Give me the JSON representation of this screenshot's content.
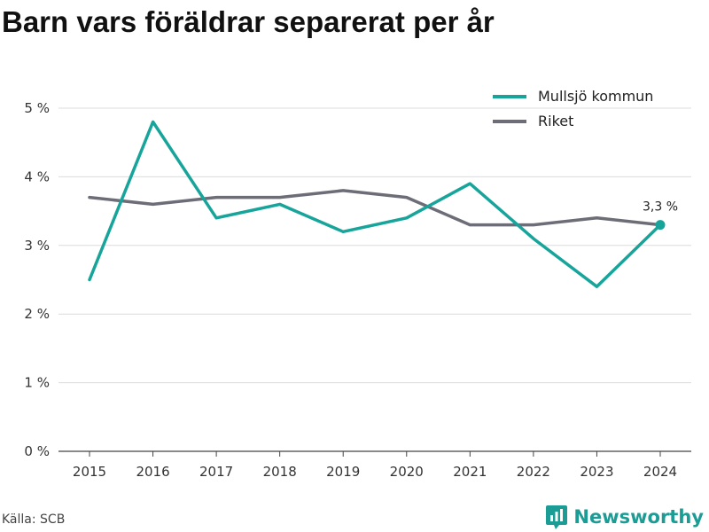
{
  "title": "Barn vars föräldrar separerat per år",
  "source": "Källa: SCB",
  "brand": {
    "name": "Newsworthy",
    "icon": "newsworthy-logo-icon",
    "color": "#1b9c94"
  },
  "chart_data": {
    "type": "line",
    "x": [
      "2015",
      "2016",
      "2017",
      "2018",
      "2019",
      "2020",
      "2021",
      "2022",
      "2023",
      "2024"
    ],
    "ylim": [
      0,
      5
    ],
    "yticks": [
      {
        "value": 0,
        "label": "0 %"
      },
      {
        "value": 1,
        "label": "1 %"
      },
      {
        "value": 2,
        "label": "2 %"
      },
      {
        "value": 3,
        "label": "3 %"
      },
      {
        "value": 4,
        "label": "4 %"
      },
      {
        "value": 5,
        "label": "5 %"
      }
    ],
    "grid": true,
    "legend": "top-right",
    "series": [
      {
        "name": "Mullsjö kommun",
        "color": "#17a49a",
        "values": [
          2.5,
          4.8,
          3.4,
          3.6,
          3.2,
          3.4,
          3.9,
          3.1,
          2.4,
          3.3
        ]
      },
      {
        "name": "Riket",
        "color": "#6d6d78",
        "values": [
          3.7,
          3.6,
          3.7,
          3.7,
          3.8,
          3.7,
          3.3,
          3.3,
          3.4,
          3.3
        ]
      }
    ],
    "annotation": {
      "series": 0,
      "index": 9,
      "label": "3,3 %"
    }
  }
}
